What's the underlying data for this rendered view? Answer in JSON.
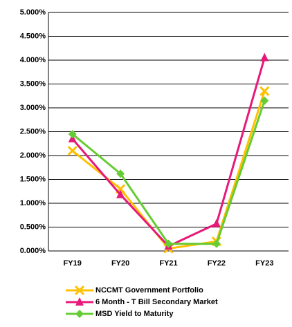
{
  "chart_data": {
    "type": "line",
    "categories": [
      "FY19",
      "FY20",
      "FY21",
      "FY22",
      "FY23"
    ],
    "series": [
      {
        "name": "NCCMT Government Portfolio",
        "color": "#ffc000",
        "marker": "x",
        "values": [
          2.1,
          1.3,
          0.05,
          0.2,
          3.35
        ]
      },
      {
        "name": "6 Month - T Bill Secondary Market",
        "color": "#e6197a",
        "marker": "triangle",
        "values": [
          2.35,
          1.18,
          0.1,
          0.57,
          4.05
        ]
      },
      {
        "name": "MSD Yield to Maturity",
        "color": "#66cc33",
        "marker": "diamond",
        "values": [
          2.45,
          1.62,
          0.15,
          0.15,
          3.15
        ]
      }
    ],
    "ylim": [
      0,
      5
    ],
    "yticks": [
      {
        "value": 0,
        "label": "0.000%"
      },
      {
        "value": 0.5,
        "label": "0.500%"
      },
      {
        "value": 1,
        "label": "1.000%"
      },
      {
        "value": 1.5,
        "label": "1.500%"
      },
      {
        "value": 2,
        "label": "2.000%"
      },
      {
        "value": 2.5,
        "label": "2.500%"
      },
      {
        "value": 3,
        "label": "3.000%"
      },
      {
        "value": 3.5,
        "label": "3.500%"
      },
      {
        "value": 4,
        "label": "4.000%"
      },
      {
        "value": 4.5,
        "label": "4.500%"
      },
      {
        "value": 5,
        "label": "5.000%"
      }
    ],
    "grid": true,
    "legend": "bottom"
  }
}
